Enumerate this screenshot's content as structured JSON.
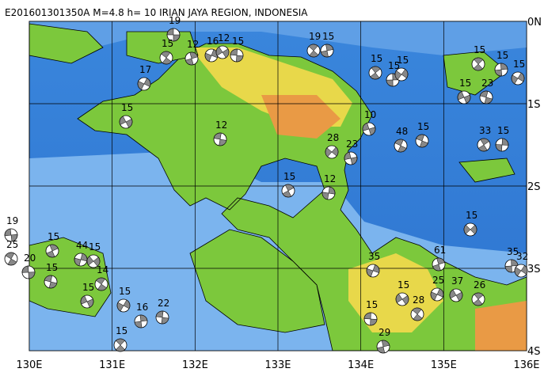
{
  "header": {
    "title": "E201601301350A  M=4.8  h= 10  IRIAN JAYA REGION, INDONESIA"
  },
  "map": {
    "lon_labels": [
      "130E",
      "131E",
      "132E",
      "133E",
      "134E",
      "135E",
      "136E"
    ],
    "lat_labels": [
      "0N",
      "1S",
      "2S",
      "3S",
      "4S"
    ],
    "event_labels": [
      "19",
      "15",
      "12",
      "16",
      "12",
      "15",
      "19",
      "15",
      "17",
      "15",
      "12",
      "15",
      "15",
      "15",
      "15",
      "23",
      "15",
      "15",
      "15",
      "10",
      "15",
      "33",
      "15",
      "28",
      "23",
      "48",
      "15",
      "12",
      "15",
      "19",
      "25",
      "15",
      "44",
      "15",
      "20",
      "14",
      "61",
      "35",
      "15",
      "15",
      "28",
      "29",
      "25",
      "37",
      "22",
      "15",
      "16",
      "15",
      "15",
      "15",
      "26",
      "35",
      "32"
    ]
  }
}
